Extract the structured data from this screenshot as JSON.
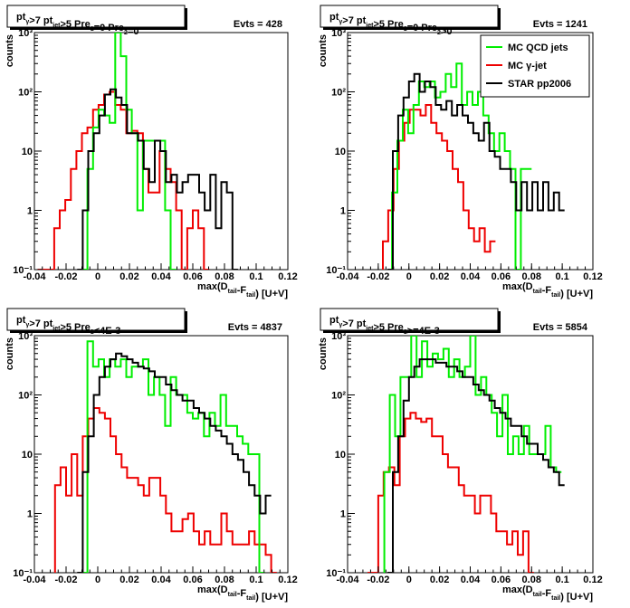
{
  "colors": {
    "mc_qcd": "#00ee00",
    "mc_gamma": "#ee0000",
    "star": "#000000"
  },
  "legend": {
    "items": [
      {
        "label": "MC QCD jets",
        "color": "#00ee00"
      },
      {
        "label": "MC γ-jet",
        "color": "#ee0000"
      },
      {
        "label": "STAR pp2006",
        "color": "#000000"
      }
    ],
    "placement": "top-right of panel 2"
  },
  "chart_data": [
    {
      "type": "histogram",
      "log_y": true,
      "title": {
        "pt": "pt",
        "pt_sub": "γ",
        "cut1": ">7  pt",
        "jet_sub": "jet",
        "rest": ">5 Pre",
        "pre1_sub": "1",
        "rest2": "=0 Pre",
        "pre2_sub": "2",
        "rest3": "=0"
      },
      "evts": "Evts = 428",
      "xlabel": {
        "pre": "max(D",
        "d_sub": "tail",
        "mid": "-F",
        "f_sub": "tail",
        "post": ") [U+V]"
      },
      "ylabel": "counts",
      "xlim": [
        -0.04,
        0.12
      ],
      "ylim": [
        0.1,
        1000
      ],
      "xticks": [
        "-0.04",
        "-0.02",
        "0",
        "0.02",
        "0.04",
        "0.06",
        "0.08",
        "0.1",
        "0.12"
      ],
      "yticks": [
        "10⁻¹",
        "1",
        "10",
        "10²",
        "10³"
      ],
      "bin_width": 0.0035,
      "series": [
        {
          "key": "gamma",
          "x0": -0.038,
          "values": [
            0.1,
            0.1,
            0.1,
            0.5,
            1.0,
            1.5,
            5,
            10,
            20,
            25,
            50,
            60,
            90,
            100,
            60,
            50,
            20,
            22,
            20,
            5,
            2,
            2,
            10,
            5,
            3,
            1,
            0.1,
            0.5,
            1,
            0.5,
            0.1
          ]
        },
        {
          "key": "qcd",
          "x0": -0.01,
          "values": [
            0.1,
            5,
            25,
            50,
            40,
            30,
            1000,
            400,
            50,
            20,
            1,
            15,
            15,
            15,
            15,
            1,
            0.1
          ]
        },
        {
          "key": "star",
          "x0": -0.013,
          "values": [
            0.1,
            1,
            10,
            20,
            40,
            90,
            110,
            80,
            60,
            20,
            20,
            15,
            5,
            3,
            15,
            10,
            3,
            4,
            2,
            3,
            4,
            4,
            2,
            1,
            4,
            0.5,
            3,
            2,
            0.1
          ]
        }
      ]
    },
    {
      "type": "histogram",
      "log_y": true,
      "title": {
        "pt": "pt",
        "pt_sub": "γ",
        "cut1": ">7  pt",
        "jet_sub": "jet",
        "rest": ">5 Pre",
        "pre1_sub": "1",
        "rest2": "=0 Pre",
        "pre2_sub": "2",
        "rest3": ">0"
      },
      "evts": "Evts = 1241",
      "xlabel": {
        "pre": "max(D",
        "d_sub": "tail",
        "mid": "-F",
        "f_sub": "tail",
        "post": ") [U+V]"
      },
      "ylabel": "counts",
      "xlim": [
        -0.04,
        0.12
      ],
      "ylim": [
        0.1,
        1000
      ],
      "xticks": [
        "-0.04",
        "-0.02",
        "0",
        "0.02",
        "0.04",
        "0.06",
        "0.08",
        "0.1",
        "0.12"
      ],
      "yticks": [
        "10⁻¹",
        "1",
        "10",
        "10²",
        "10³"
      ],
      "bin_width": 0.0035,
      "series": [
        {
          "key": "gamma",
          "x0": -0.017,
          "values": [
            0.3,
            1,
            5,
            15,
            30,
            50,
            50,
            40,
            60,
            30,
            20,
            15,
            10,
            5,
            3,
            1,
            0.5,
            0.3,
            0.5,
            0.2,
            0.3
          ]
        },
        {
          "key": "qcd",
          "x0": -0.011,
          "values": [
            2,
            15,
            50,
            20,
            60,
            150,
            120,
            150,
            80,
            100,
            200,
            120,
            300,
            60,
            100,
            60,
            100,
            40,
            20,
            10,
            20,
            10,
            5,
            0.1,
            5,
            5
          ]
        },
        {
          "key": "star",
          "x0": -0.014,
          "values": [
            0.1,
            10,
            40,
            80,
            150,
            200,
            100,
            150,
            120,
            60,
            50,
            70,
            40,
            60,
            40,
            30,
            20,
            15,
            30,
            10,
            8,
            5,
            5,
            3,
            1,
            3,
            1,
            3,
            1,
            3,
            1,
            2,
            1
          ]
        }
      ]
    },
    {
      "type": "histogram",
      "log_y": true,
      "title": {
        "pt": "pt",
        "pt_sub": "γ",
        "cut1": ">7  pt",
        "jet_sub": "jet",
        "rest": ">5 Pre",
        "pre1_sub": "1",
        "rest2": "<4E-3",
        "pre2_sub": "",
        "rest3": ""
      },
      "evts": "Evts = 4837",
      "xlabel": {
        "pre": "max(D",
        "d_sub": "tail",
        "mid": "-F",
        "f_sub": "tail",
        "post": ") [U+V]"
      },
      "ylabel": "counts",
      "xlim": [
        -0.04,
        0.12
      ],
      "ylim": [
        0.1,
        1000
      ],
      "xticks": [
        "-0.04",
        "-0.02",
        "0",
        "0.02",
        "0.04",
        "0.06",
        "0.08",
        "0.1",
        "0.12"
      ],
      "yticks": [
        "10⁻¹",
        "1",
        "10",
        "10²",
        "10³"
      ],
      "bin_width": 0.0035,
      "series": [
        {
          "key": "gamma",
          "x0": -0.027,
          "values": [
            3,
            6,
            2,
            10,
            2,
            20,
            40,
            60,
            50,
            40,
            20,
            10,
            6,
            4,
            4,
            3,
            2,
            4,
            4,
            2,
            1,
            0.5,
            0.5,
            0.8,
            1,
            0.5,
            0.3,
            0.5,
            0.3,
            0.3,
            1,
            0.5,
            0.3,
            0.3,
            0.3,
            0.5,
            0.3,
            0.3,
            0.2,
            0.1
          ]
        },
        {
          "key": "qcd",
          "x0": -0.01,
          "values": [
            0.1,
            800,
            300,
            400,
            200,
            400,
            300,
            400,
            200,
            300,
            300,
            400,
            100,
            200,
            100,
            30,
            200,
            100,
            100,
            50,
            40,
            50,
            20,
            50,
            30,
            100,
            30,
            30,
            20,
            15,
            10,
            10,
            0.1
          ]
        },
        {
          "key": "star",
          "x0": -0.013,
          "values": [
            0.1,
            5,
            20,
            100,
            200,
            300,
            400,
            500,
            450,
            400,
            350,
            300,
            280,
            250,
            200,
            200,
            150,
            120,
            100,
            80,
            80,
            60,
            50,
            40,
            30,
            25,
            20,
            15,
            10,
            8,
            5,
            3,
            2,
            1,
            2
          ]
        }
      ]
    },
    {
      "type": "histogram",
      "log_y": true,
      "title": {
        "pt": "pt",
        "pt_sub": "γ",
        "cut1": ">7  pt",
        "jet_sub": "jet",
        "rest": ">5 Pre",
        "pre1_sub": "1",
        "rest2": ">=4E-3",
        "pre2_sub": "",
        "rest3": ""
      },
      "evts": "Evts = 5854",
      "xlabel": {
        "pre": "max(D",
        "d_sub": "tail",
        "mid": "-F",
        "f_sub": "tail",
        "post": ") [U+V]"
      },
      "ylabel": "counts",
      "xlim": [
        -0.04,
        0.12
      ],
      "ylim": [
        0.1,
        1000
      ],
      "xticks": [
        "-0.04",
        "-0.02",
        "0",
        "0.02",
        "0.04",
        "0.06",
        "0.08",
        "0.1",
        "0.12"
      ],
      "yticks": [
        "10⁻¹",
        "1",
        "10",
        "10²",
        "10³"
      ],
      "bin_width": 0.0035,
      "series": [
        {
          "key": "gamma",
          "x0": -0.027,
          "values": [
            0.1,
            0.1,
            2,
            5,
            6,
            3,
            20,
            40,
            50,
            40,
            35,
            40,
            20,
            20,
            10,
            6,
            6,
            3,
            2,
            2,
            1,
            2,
            2,
            1,
            0.5,
            0.5,
            0.3,
            0.5,
            0.2,
            0.5,
            0.1
          ]
        },
        {
          "key": "qcd",
          "x0": -0.016,
          "values": [
            5,
            100,
            20,
            200,
            200,
            1000,
            200,
            800,
            300,
            500,
            400,
            600,
            200,
            400,
            200,
            300,
            1000,
            100,
            200,
            100,
            50,
            20,
            100,
            10,
            20,
            10,
            30,
            10,
            10,
            10,
            30,
            6,
            5
          ]
        },
        {
          "key": "star",
          "x0": -0.014,
          "values": [
            0.1,
            5,
            20,
            80,
            200,
            300,
            400,
            400,
            400,
            350,
            350,
            300,
            300,
            250,
            200,
            200,
            150,
            120,
            100,
            80,
            60,
            50,
            40,
            30,
            30,
            20,
            15,
            15,
            10,
            8,
            6,
            5,
            3
          ]
        }
      ]
    }
  ]
}
